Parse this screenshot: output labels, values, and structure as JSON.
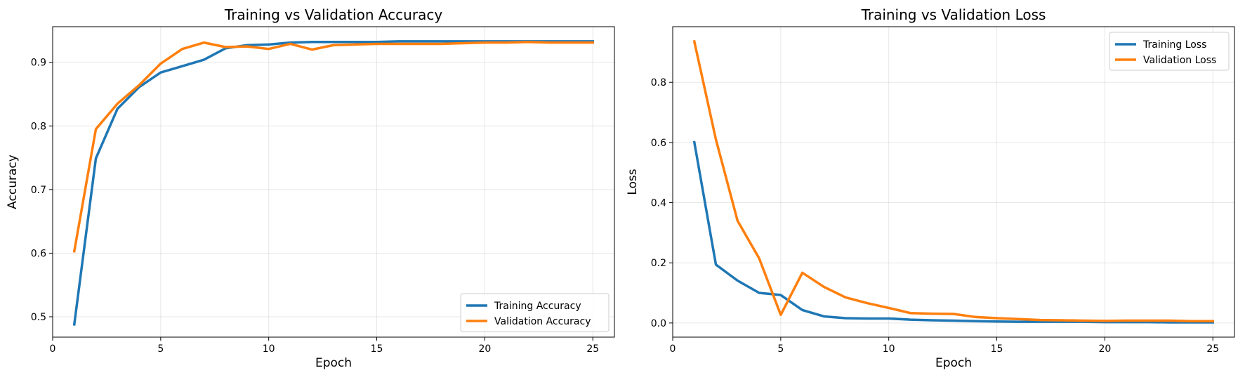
{
  "chart_data": [
    {
      "type": "line",
      "title": "Training vs Validation Accuracy",
      "xlabel": "Epoch",
      "ylabel": "Accuracy",
      "xlim": [
        0,
        26
      ],
      "ylim": [
        0.468,
        0.956
      ],
      "xticks": [
        0,
        5,
        10,
        15,
        20,
        25
      ],
      "yticks": [
        0.5,
        0.6,
        0.7,
        0.8,
        0.9
      ],
      "ytick_decimals": 1,
      "grid": true,
      "legend_position": "lower-right",
      "x": [
        1,
        2,
        3,
        4,
        5,
        6,
        7,
        8,
        9,
        10,
        11,
        12,
        13,
        14,
        15,
        16,
        17,
        18,
        19,
        20,
        21,
        22,
        23,
        24,
        25
      ],
      "series": [
        {
          "name": "Training Accuracy",
          "color": "#1f77b4",
          "values": [
            0.488,
            0.749,
            0.827,
            0.861,
            0.884,
            0.894,
            0.904,
            0.922,
            0.927,
            0.928,
            0.931,
            0.932,
            0.932,
            0.932,
            0.932,
            0.933,
            0.933,
            0.933,
            0.933,
            0.933,
            0.933,
            0.933,
            0.933,
            0.933,
            0.933
          ]
        },
        {
          "name": "Validation Accuracy",
          "color": "#ff7f0e",
          "values": [
            0.603,
            0.795,
            0.835,
            0.864,
            0.898,
            0.921,
            0.931,
            0.924,
            0.925,
            0.921,
            0.929,
            0.92,
            0.927,
            0.928,
            0.929,
            0.929,
            0.929,
            0.929,
            0.93,
            0.931,
            0.931,
            0.932,
            0.931,
            0.931,
            0.931
          ]
        }
      ]
    },
    {
      "type": "line",
      "title": "Training vs Validation Loss",
      "xlabel": "Epoch",
      "ylabel": "Loss",
      "xlim": [
        0,
        26
      ],
      "ylim": [
        -0.047,
        0.985
      ],
      "xticks": [
        0,
        5,
        10,
        15,
        20,
        25
      ],
      "yticks": [
        0.0,
        0.2,
        0.4,
        0.6,
        0.8
      ],
      "ytick_decimals": 1,
      "grid": true,
      "legend_position": "upper-right",
      "x": [
        1,
        2,
        3,
        4,
        5,
        6,
        7,
        8,
        9,
        10,
        11,
        12,
        13,
        14,
        15,
        16,
        17,
        18,
        19,
        20,
        21,
        22,
        23,
        24,
        25
      ],
      "series": [
        {
          "name": "Training Loss",
          "color": "#1f77b4",
          "values": [
            0.601,
            0.194,
            0.141,
            0.1,
            0.093,
            0.043,
            0.022,
            0.016,
            0.015,
            0.015,
            0.011,
            0.009,
            0.008,
            0.006,
            0.005,
            0.004,
            0.004,
            0.004,
            0.004,
            0.003,
            0.003,
            0.003,
            0.002,
            0.002,
            0.002
          ]
        },
        {
          "name": "Validation Loss",
          "color": "#ff7f0e",
          "values": [
            0.936,
            0.61,
            0.34,
            0.215,
            0.027,
            0.167,
            0.12,
            0.085,
            0.066,
            0.05,
            0.033,
            0.031,
            0.03,
            0.02,
            0.016,
            0.013,
            0.01,
            0.009,
            0.008,
            0.007,
            0.008,
            0.008,
            0.008,
            0.006,
            0.006
          ]
        }
      ]
    }
  ]
}
